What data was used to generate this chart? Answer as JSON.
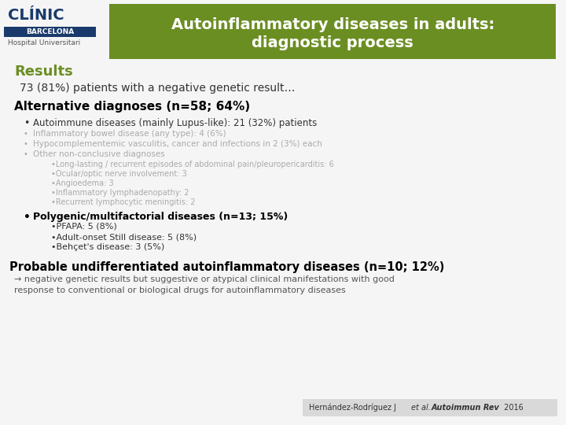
{
  "bg_color": "#f5f5f5",
  "header_bg": "#6b8e23",
  "header_text": "Autoinflammatory diseases in adults:\ndiagnostic process",
  "header_text_color": "#ffffff",
  "results_label": "Results",
  "results_color": "#6b8e23",
  "subtitle": "73 (81%) patients with a negative genetic result…",
  "subtitle_color": "#333333",
  "alt_diag_title": "Alternative diagnoses (n=58; 64%)",
  "alt_diag_color": "#000000",
  "bullet1_bold": "Autoimmune diseases (mainly Lupus-like): 21 (32%) patients",
  "bullet1_color": "#333333",
  "bullet2": "Inflammatory bowel disease (any type): 4 (6%)",
  "bullet2_color": "#aaaaaa",
  "bullet3": "Hypocomplementemic vasculitis, cancer and infections in 2 (3%) each",
  "bullet3_color": "#aaaaaa",
  "bullet4": "Other non-conclusive diagnoses",
  "bullet4_color": "#aaaaaa",
  "sub_bullets": [
    "•Long-lasting / recurrent episodes of abdominal pain/pleuropericarditis: 6",
    "•Ocular/optic nerve involvement: 3",
    "•Angioedema: 3",
    "•Inflammatory lymphadenopathy: 2",
    "•Recurrent lymphocytic meningitis: 2"
  ],
  "sub_bullet_color": "#aaaaaa",
  "poly_title": "Polygenic/multifactorial diseases (n=13; 15%)",
  "poly_color": "#000000",
  "poly_sub": [
    "•PFAPA: 5 (8%)",
    "•Adult-onset Still disease: 5 (8%)",
    "•Behçet's disease: 3 (5%)"
  ],
  "poly_sub_color": "#333333",
  "probable_title": "Probable undifferentiated autoinflammatory diseases (n=10; 12%)",
  "probable_color": "#000000",
  "probable_text": "→ negative genetic results but suggestive or atypical clinical manifestations with good\nresponse to conventional or biological drugs for autoinflammatory diseases",
  "probable_text_color": "#555555",
  "citation_bg": "#d9d9d9",
  "clinic_text_color": "#1a3a6b",
  "barcelona_bg": "#1a3a6b",
  "barcelona_text": "BARCELONA",
  "hosp_text": "Hospital Universitari"
}
